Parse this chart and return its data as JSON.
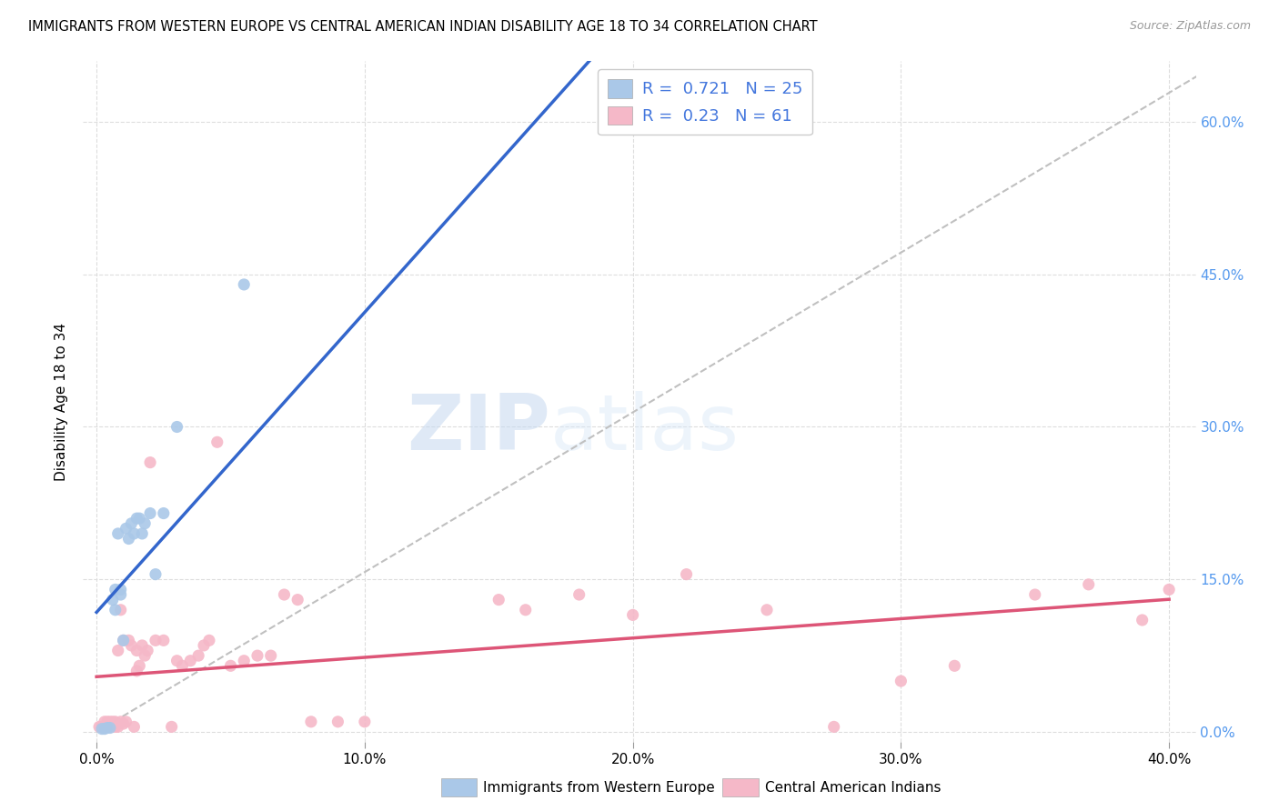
{
  "title": "IMMIGRANTS FROM WESTERN EUROPE VS CENTRAL AMERICAN INDIAN DISABILITY AGE 18 TO 34 CORRELATION CHART",
  "source": "Source: ZipAtlas.com",
  "ylabel": "Disability Age 18 to 34",
  "x_tick_labels": [
    "0.0%",
    "10.0%",
    "20.0%",
    "30.0%",
    "40.0%"
  ],
  "x_tick_values": [
    0.0,
    0.1,
    0.2,
    0.3,
    0.4
  ],
  "y_tick_labels_right": [
    "0.0%",
    "15.0%",
    "30.0%",
    "45.0%",
    "60.0%"
  ],
  "y_tick_values": [
    0.0,
    0.15,
    0.3,
    0.45,
    0.6
  ],
  "xlim": [
    -0.005,
    0.41
  ],
  "ylim": [
    -0.01,
    0.66
  ],
  "blue_R": 0.721,
  "blue_N": 25,
  "pink_R": 0.23,
  "pink_N": 61,
  "legend_label_blue": "Immigrants from Western Europe",
  "legend_label_pink": "Central American Indians",
  "blue_color": "#aac8e8",
  "pink_color": "#f5b8c8",
  "blue_line_color": "#3366cc",
  "pink_line_color": "#dd5577",
  "diagonal_line_color": "#c0c0c0",
  "background_color": "#ffffff",
  "watermark_zip": "ZIP",
  "watermark_atlas": "atlas",
  "blue_x": [
    0.002,
    0.003,
    0.004,
    0.005,
    0.006,
    0.007,
    0.007,
    0.008,
    0.009,
    0.009,
    0.01,
    0.011,
    0.012,
    0.013,
    0.014,
    0.015,
    0.016,
    0.017,
    0.018,
    0.02,
    0.022,
    0.025,
    0.03,
    0.055,
    0.19
  ],
  "blue_y": [
    0.003,
    0.003,
    0.004,
    0.004,
    0.13,
    0.14,
    0.12,
    0.195,
    0.14,
    0.135,
    0.09,
    0.2,
    0.19,
    0.205,
    0.195,
    0.21,
    0.21,
    0.195,
    0.205,
    0.215,
    0.155,
    0.215,
    0.3,
    0.44,
    0.6
  ],
  "pink_x": [
    0.001,
    0.002,
    0.003,
    0.003,
    0.004,
    0.004,
    0.005,
    0.005,
    0.006,
    0.006,
    0.007,
    0.007,
    0.008,
    0.008,
    0.009,
    0.009,
    0.01,
    0.01,
    0.011,
    0.012,
    0.013,
    0.014,
    0.015,
    0.015,
    0.016,
    0.017,
    0.018,
    0.019,
    0.02,
    0.022,
    0.025,
    0.028,
    0.03,
    0.032,
    0.035,
    0.038,
    0.04,
    0.042,
    0.045,
    0.05,
    0.055,
    0.06,
    0.065,
    0.07,
    0.075,
    0.08,
    0.09,
    0.1,
    0.15,
    0.16,
    0.18,
    0.2,
    0.22,
    0.25,
    0.275,
    0.3,
    0.32,
    0.35,
    0.37,
    0.39,
    0.4
  ],
  "pink_y": [
    0.005,
    0.005,
    0.005,
    0.01,
    0.005,
    0.01,
    0.005,
    0.01,
    0.005,
    0.01,
    0.005,
    0.01,
    0.005,
    0.08,
    0.01,
    0.12,
    0.008,
    0.09,
    0.01,
    0.09,
    0.085,
    0.005,
    0.06,
    0.08,
    0.065,
    0.085,
    0.075,
    0.08,
    0.265,
    0.09,
    0.09,
    0.005,
    0.07,
    0.065,
    0.07,
    0.075,
    0.085,
    0.09,
    0.285,
    0.065,
    0.07,
    0.075,
    0.075,
    0.135,
    0.13,
    0.01,
    0.01,
    0.01,
    0.13,
    0.12,
    0.135,
    0.115,
    0.155,
    0.12,
    0.005,
    0.05,
    0.065,
    0.135,
    0.145,
    0.11,
    0.14
  ]
}
